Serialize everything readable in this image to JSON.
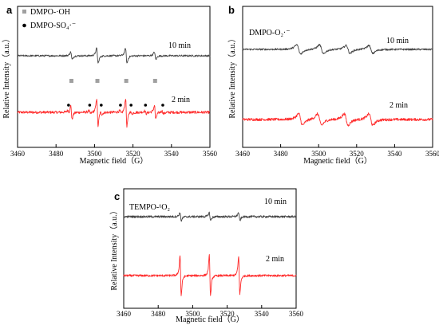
{
  "colors": {
    "curve_10min": "#ff2b2b",
    "curve_2min": "#444444",
    "axis": "#000000",
    "marker_oh": "#a0a0a0",
    "marker_so4": "#000000"
  },
  "chart_data": [
    {
      "type": "line",
      "panel_label": "a",
      "xlabel": "Magnetic field（G）",
      "ylabel": "Relative Intensity（a.u.）",
      "xlim": [
        3460,
        3560
      ],
      "xticks": [
        "3460",
        "3480",
        "3500",
        "3520",
        "3540",
        "3560"
      ],
      "y_ticks": "none",
      "legend": {
        "position": "top-left",
        "entries": [
          {
            "marker": "square",
            "label": "DMPO-·OH"
          },
          {
            "marker": "dot",
            "label": "DMPO-SO₄·⁻"
          }
        ]
      },
      "series": [
        {
          "name": "10 min",
          "color": "#ff2b2b",
          "offset": 1.0,
          "noise": 0.018,
          "lines": [
            {
              "center": 3488.0,
              "amp": 0.15,
              "width": 0.6
            },
            {
              "center": 3501.5,
              "amp": 0.3,
              "width": 0.6
            },
            {
              "center": 3516.5,
              "amp": 0.3,
              "width": 0.6
            },
            {
              "center": 3531.5,
              "amp": 0.15,
              "width": 0.6
            },
            {
              "center": 3486.5,
              "amp": 0.03,
              "width": 0.7
            },
            {
              "center": 3497.5,
              "amp": 0.03,
              "width": 0.7
            },
            {
              "center": 3503.5,
              "amp": 0.03,
              "width": 0.7
            },
            {
              "center": 3513.5,
              "amp": 0.03,
              "width": 0.7
            },
            {
              "center": 3519.0,
              "amp": 0.03,
              "width": 0.7
            },
            {
              "center": 3526.5,
              "amp": 0.03,
              "width": 0.7
            },
            {
              "center": 3535.5,
              "amp": 0.03,
              "width": 0.7
            }
          ]
        },
        {
          "name": "2 min",
          "color": "#444444",
          "offset": 0.0,
          "noise": 0.012,
          "lines": [
            {
              "center": 3488.0,
              "amp": 0.08,
              "width": 0.7
            },
            {
              "center": 3501.5,
              "amp": 0.16,
              "width": 0.7
            },
            {
              "center": 3516.5,
              "amp": 0.16,
              "width": 0.7
            },
            {
              "center": 3531.5,
              "amp": 0.08,
              "width": 0.7
            }
          ]
        }
      ],
      "markers": [
        {
          "symbol": "square",
          "x": [
            3488.0,
            3501.5,
            3516.5,
            3531.5
          ]
        },
        {
          "symbol": "dot",
          "x": [
            3486.5,
            3497.5,
            3503.5,
            3513.5,
            3519.0,
            3526.5,
            3535.5
          ]
        }
      ]
    },
    {
      "type": "line",
      "panel_label": "b",
      "species_label": "DMPO-O₂·⁻",
      "xlabel": "Magnetic field（G）",
      "ylabel": "Relative Intensity（a.u.）",
      "xlim": [
        3460,
        3560
      ],
      "xticks": [
        "3460",
        "3480",
        "3500",
        "3520",
        "3540",
        "3560"
      ],
      "y_ticks": "none",
      "series": [
        {
          "name": "10 min",
          "color": "#ff2b2b",
          "offset": 1.0,
          "noise": 0.015,
          "lines": [
            {
              "center": 3490.5,
              "amp": 0.1,
              "width": 1.8
            },
            {
              "center": 3500.5,
              "amp": 0.1,
              "width": 1.8
            },
            {
              "center": 3514.5,
              "amp": 0.1,
              "width": 1.8
            },
            {
              "center": 3527.5,
              "amp": 0.1,
              "width": 1.8
            }
          ]
        },
        {
          "name": "2 min",
          "color": "#444444",
          "offset": 0.0,
          "noise": 0.01,
          "lines": [
            {
              "center": 3489.5,
              "amp": 0.08,
              "width": 1.8
            },
            {
              "center": 3501.5,
              "amp": 0.08,
              "width": 1.8
            },
            {
              "center": 3515.5,
              "amp": 0.07,
              "width": 1.8
            },
            {
              "center": 3527.5,
              "amp": 0.07,
              "width": 1.8
            }
          ]
        }
      ]
    },
    {
      "type": "line",
      "panel_label": "c",
      "species_label": "TEMPO-¹O₂",
      "xlabel": "Magnetic field（G）",
      "ylabel": "Relative Intensity（a.u.）",
      "xlim": [
        3460,
        3560
      ],
      "xticks": [
        "3460",
        "3480",
        "3500",
        "3520",
        "3540",
        "3560"
      ],
      "y_ticks": "none",
      "series": [
        {
          "name": "10 min",
          "color": "#ff2b2b",
          "offset": 1.0,
          "noise": 0.01,
          "lines": [
            {
              "center": 3493.0,
              "amp": 0.3,
              "width": 0.6
            },
            {
              "center": 3510.0,
              "amp": 0.3,
              "width": 0.6
            },
            {
              "center": 3527.0,
              "amp": 0.28,
              "width": 0.6
            }
          ]
        },
        {
          "name": "2 min",
          "color": "#444444",
          "offset": 0.0,
          "noise": 0.01,
          "lines": [
            {
              "center": 3493.0,
              "amp": 0.06,
              "width": 0.7
            },
            {
              "center": 3510.0,
              "amp": 0.06,
              "width": 0.7
            },
            {
              "center": 3527.0,
              "amp": 0.06,
              "width": 0.7
            }
          ]
        }
      ]
    }
  ]
}
